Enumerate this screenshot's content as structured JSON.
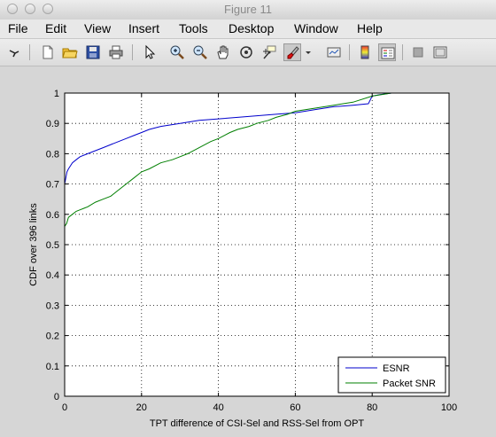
{
  "window": {
    "title": "Figure 11"
  },
  "menu": [
    "File",
    "Edit",
    "View",
    "Insert",
    "Tools",
    "Desktop",
    "Window",
    "Help"
  ],
  "toolbar": {
    "icons": [
      "arrow-icon",
      "new-figure-icon",
      "open-file-icon",
      "save-icon",
      "print-icon",
      "select-arrow-icon",
      "zoom-in-icon",
      "zoom-out-icon",
      "pan-icon",
      "rotate-3d-icon",
      "data-cursor-icon",
      "brush-icon",
      "brush-dropdown-icon",
      "link-plot-icon",
      "colorbar-icon",
      "legend-icon",
      "hide-plot-tools-icon",
      "show-plot-tools-icon"
    ]
  },
  "chart_data": {
    "type": "line",
    "title": "",
    "xlabel": "TPT difference of CSI-Sel and RSS-Sel from OPT",
    "ylabel": "CDF over 396 links",
    "xlim": [
      0,
      100
    ],
    "ylim": [
      0,
      1
    ],
    "xticks": [
      "0",
      "20",
      "40",
      "60",
      "80",
      "100"
    ],
    "yticks": [
      "0",
      "0.1",
      "0.2",
      "0.3",
      "0.4",
      "0.5",
      "0.6",
      "0.7",
      "0.8",
      "0.9",
      "1"
    ],
    "grid": true,
    "legend_position": "bottom-right",
    "colors": {
      "ESNR": "#0000cc",
      "Packet SNR": "#007f00"
    },
    "series": [
      {
        "name": "ESNR",
        "x": [
          0,
          0,
          0.3,
          0.6,
          1,
          1.5,
          2,
          3,
          4,
          6,
          8,
          10,
          12,
          14,
          16,
          18,
          20,
          22,
          25,
          30,
          35,
          40,
          45,
          50,
          55,
          60,
          65,
          70,
          75,
          79,
          80,
          82,
          85,
          90,
          95,
          100
        ],
        "y": [
          0,
          0.7,
          0.72,
          0.74,
          0.75,
          0.76,
          0.77,
          0.78,
          0.79,
          0.8,
          0.81,
          0.82,
          0.83,
          0.84,
          0.85,
          0.86,
          0.87,
          0.88,
          0.89,
          0.9,
          0.91,
          0.915,
          0.92,
          0.925,
          0.93,
          0.935,
          0.945,
          0.955,
          0.96,
          0.965,
          0.99,
          0.995,
          1.0,
          1.0,
          1.0,
          1.0
        ]
      },
      {
        "name": "Packet SNR",
        "x": [
          0,
          0,
          0.5,
          1,
          2,
          3,
          4,
          5,
          6,
          8,
          10,
          12,
          14,
          16,
          18,
          20,
          22,
          25,
          28,
          30,
          32,
          35,
          38,
          40,
          43,
          45,
          48,
          50,
          53,
          55,
          58,
          60,
          65,
          70,
          75,
          80,
          85,
          90,
          95,
          100
        ],
        "y": [
          0,
          0.56,
          0.57,
          0.59,
          0.6,
          0.61,
          0.615,
          0.62,
          0.625,
          0.64,
          0.65,
          0.66,
          0.68,
          0.7,
          0.72,
          0.74,
          0.75,
          0.77,
          0.78,
          0.79,
          0.8,
          0.82,
          0.84,
          0.85,
          0.87,
          0.88,
          0.89,
          0.9,
          0.91,
          0.92,
          0.93,
          0.94,
          0.95,
          0.96,
          0.97,
          0.99,
          1.0,
          1.0,
          1.0,
          1.0
        ]
      }
    ]
  }
}
